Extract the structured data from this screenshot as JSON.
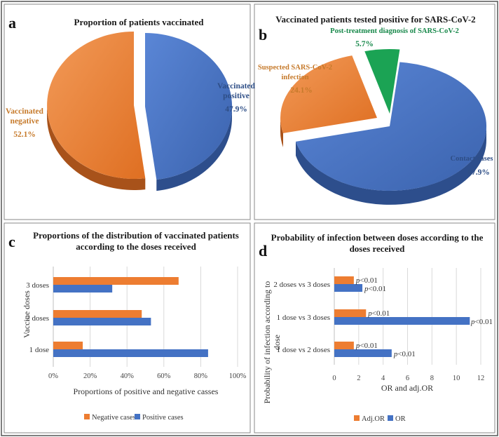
{
  "colors": {
    "orange": "#ED7D31",
    "orange_dark": "#A8521A",
    "blue": "#4472C4",
    "blue_dark": "#2D4E8C",
    "green": "#1BA354",
    "green_dark": "#0E6B35",
    "label_orange": "#C67A2B",
    "label_blue": "#2E4E86",
    "label_green": "#17884A"
  },
  "chart_data": [
    {
      "panel": "a",
      "type": "pie",
      "title": "Proportion of patients vaccinated",
      "slices": [
        {
          "name": "Vaccinated positive",
          "lines": [
            "Vaccinated",
            "positive"
          ],
          "value": 47.9,
          "value_label": "47.9%"
        },
        {
          "name": "Vaccinated negative",
          "lines": [
            "Vaccinated",
            "negative"
          ],
          "value": 52.1,
          "value_label": "52.1%"
        }
      ]
    },
    {
      "panel": "b",
      "type": "pie",
      "title": "Vaccinated patients tested positive for SARS-CoV-2",
      "slices": [
        {
          "name": "Contact cases",
          "lines": [
            "Contact cases"
          ],
          "value": 67.9,
          "value_label": "67.9%"
        },
        {
          "name": "Suspected SARS-CoV-2 infection",
          "lines": [
            "Suspected SARS-CoV-2",
            "infection"
          ],
          "value": 24.1,
          "value_label": "24.1%"
        },
        {
          "name": "Post-treatment diagnosis of SARS-CoV-2",
          "lines": [
            "Post-treatment diagnosis of SARS-CoV-2"
          ],
          "value": 5.7,
          "value_label": "5.7%"
        }
      ]
    },
    {
      "panel": "c",
      "type": "bar",
      "orientation": "horizontal",
      "title_lines": [
        "Proportions of the distribution of vaccinated patients",
        "according to the doses received"
      ],
      "categories": [
        "3 doses",
        "2 doses",
        "1 dose"
      ],
      "series": [
        {
          "name": "Negative cases",
          "values": [
            68,
            48,
            16
          ]
        },
        {
          "name": "Positive cases",
          "values": [
            32,
            53,
            84
          ]
        }
      ],
      "xlabel": "Proportions of positive and negative casses",
      "ylabel": "Vaccine doses",
      "xlim": [
        0,
        100
      ],
      "xticks": [
        "0%",
        "20%",
        "40%",
        "60%",
        "80%",
        "100%"
      ],
      "legend": "bottom"
    },
    {
      "panel": "d",
      "type": "bar",
      "orientation": "horizontal",
      "title_lines": [
        "Probability of infection between doses according to the",
        "doses received"
      ],
      "categories": [
        "2 doses vs 3 doses",
        "1 dose vs 3 doses",
        "1 dose vs 2 doses"
      ],
      "series": [
        {
          "name": "Adj.OR",
          "values": [
            1.6,
            2.6,
            1.6
          ],
          "annotations": [
            "p<0.01",
            "p<0.01",
            "p<0.01"
          ]
        },
        {
          "name": "OR",
          "values": [
            2.3,
            11.1,
            4.7
          ],
          "annotations": [
            "p<0.01",
            "p<0.01",
            "p<0.01"
          ]
        }
      ],
      "xlabel": "OR and adj.OR",
      "ylabel_lines": [
        "Probability of infection according to",
        "dose"
      ],
      "xlim": [
        0,
        12
      ],
      "xticks": [
        "0",
        "2",
        "4",
        "6",
        "8",
        "10",
        "12"
      ],
      "legend": "bottom"
    }
  ]
}
